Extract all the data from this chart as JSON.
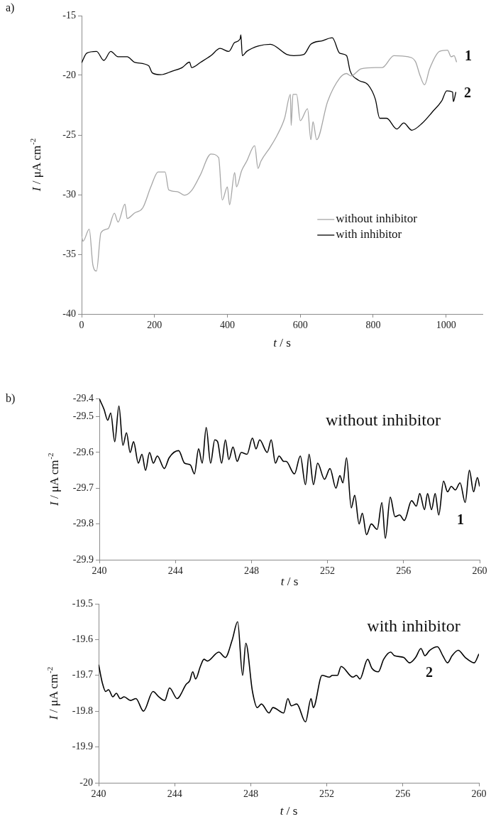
{
  "chart_data": [
    {
      "type": "line",
      "annotations": [
        "a)",
        "1",
        "2"
      ],
      "xlabel": "t / s",
      "ylabel": "I / μA cm$^{-2}$",
      "xlim": [
        0,
        1100
      ],
      "xticks": [
        0,
        200,
        400,
        600,
        800,
        1000
      ],
      "ylim": [
        -40,
        -15
      ],
      "yticks": [
        -40,
        -35,
        -30,
        -25,
        -20,
        -15
      ],
      "grid": false,
      "legend": "bottom right",
      "marker": "none",
      "series": [
        {
          "name": "without inhibitor",
          "color": "#a6a6a6",
          "x": [
            0,
            4,
            21,
            31,
            41,
            53,
            73,
            90,
            100,
            119,
            125,
            145,
            168,
            190,
            210,
            229,
            239,
            263,
            282,
            302,
            325,
            355,
            376,
            386,
            400,
            406,
            420,
            425,
            439,
            453,
            475,
            484,
            492,
            518,
            537,
            557,
            573,
            575,
            580,
            590,
            600,
            620,
            629,
            635,
            645,
            675,
            708,
            727,
            739,
            767,
            806,
            825,
            857,
            896,
            916,
            929,
            941,
            955,
            982,
            1004,
            1014,
            1022,
            1029
          ],
          "values": [
            -33.5,
            -33.9,
            -32.9,
            -35.9,
            -36.4,
            -33.2,
            -32.85,
            -31.55,
            -32.3,
            -30.8,
            -32.0,
            -31.55,
            -31.1,
            -29.35,
            -28.1,
            -28.1,
            -29.6,
            -29.75,
            -30.05,
            -29.65,
            -28.4,
            -26.6,
            -26.9,
            -30.45,
            -29.35,
            -30.85,
            -28.15,
            -29.35,
            -28.0,
            -27.2,
            -25.9,
            -27.8,
            -27.2,
            -26.0,
            -25.0,
            -23.6,
            -21.6,
            -24.2,
            -21.6,
            -21.6,
            -23.8,
            -22.8,
            -25.4,
            -23.9,
            -25.4,
            -22.2,
            -20.25,
            -19.85,
            -20.05,
            -19.45,
            -19.35,
            -19.35,
            -18.35,
            -18.45,
            -18.85,
            -20.05,
            -20.8,
            -19.45,
            -18.0,
            -17.9,
            -18.45,
            -18.35,
            -18.9
          ]
        },
        {
          "name": "with inhibitor",
          "color": "#000000",
          "x": [
            0,
            14,
            41,
            61,
            80,
            100,
            125,
            145,
            184,
            194,
            217,
            249,
            276,
            296,
            302,
            327,
            355,
            380,
            404,
            420,
            435,
            437,
            441,
            453,
            484,
            518,
            563,
            582,
            610,
            629,
            661,
            688,
            708,
            727,
            737,
            759,
            786,
            806,
            818,
            837,
            865,
            884,
            906,
            935,
            963,
            988,
            1002,
            1018,
            1020,
            1027
          ],
          "values": [
            -18.95,
            -18.15,
            -18.0,
            -18.75,
            -18.0,
            -18.45,
            -18.45,
            -18.9,
            -19.2,
            -19.8,
            -19.95,
            -19.65,
            -19.35,
            -18.9,
            -19.35,
            -18.9,
            -18.35,
            -17.75,
            -18.0,
            -17.25,
            -16.95,
            -16.6,
            -18.35,
            -18.0,
            -17.55,
            -17.4,
            -18.25,
            -18.35,
            -18.25,
            -17.4,
            -17.1,
            -16.85,
            -18.15,
            -18.35,
            -19.65,
            -20.4,
            -20.8,
            -22.0,
            -23.6,
            -23.6,
            -24.5,
            -24.0,
            -24.6,
            -24.0,
            -23.05,
            -22.15,
            -21.3,
            -21.4,
            -22.2,
            -21.4
          ]
        }
      ]
    },
    {
      "type": "line",
      "annotations": [
        "b)",
        "without inhibitor",
        "1"
      ],
      "xlabel": "t / s",
      "ylabel": "I / μA cm$^{-2}$",
      "xlim": [
        240,
        260
      ],
      "xticks": [
        240,
        244,
        248,
        252,
        256,
        260
      ],
      "ylim": [
        -29.9,
        -29.45
      ],
      "yticks": [
        -29.9,
        -29.8,
        -29.7,
        -29.6,
        -29.5,
        {
          "value": -29.45,
          "label": "-29.4"
        }
      ],
      "grid": false,
      "marker": "none",
      "series": [
        {
          "color": "#000000",
          "x": [
            240.0,
            240.25,
            240.44,
            240.6,
            240.81,
            241.03,
            241.24,
            241.43,
            241.62,
            241.8,
            242.05,
            242.24,
            242.43,
            242.64,
            242.84,
            243.05,
            243.42,
            243.67,
            244.17,
            244.48,
            244.79,
            245.0,
            245.22,
            245.41,
            245.62,
            245.85,
            246.07,
            246.22,
            246.43,
            246.63,
            246.81,
            247.03,
            247.25,
            247.46,
            247.77,
            248.05,
            248.24,
            248.43,
            248.83,
            249.04,
            249.26,
            249.45,
            249.7,
            249.82,
            250.26,
            250.57,
            250.84,
            251.03,
            251.26,
            251.48,
            251.84,
            252.13,
            252.44,
            252.65,
            252.81,
            253.0,
            253.25,
            253.43,
            253.66,
            253.83,
            254.05,
            254.3,
            254.61,
            254.86,
            255.04,
            255.3,
            255.55,
            255.79,
            256.04,
            256.42,
            256.67,
            256.85,
            257.1,
            257.26,
            257.47,
            257.66,
            257.85,
            258.1,
            258.31,
            258.51,
            258.72,
            258.97,
            259.24,
            259.46,
            259.68,
            259.88,
            260
          ],
          "values": [
            -29.45,
            -29.48,
            -29.51,
            -29.49,
            -29.57,
            -29.47,
            -29.58,
            -29.545,
            -29.6,
            -29.57,
            -29.63,
            -29.605,
            -29.65,
            -29.6,
            -29.63,
            -29.61,
            -29.645,
            -29.615,
            -29.595,
            -29.63,
            -29.635,
            -29.66,
            -29.59,
            -29.63,
            -29.53,
            -29.63,
            -29.565,
            -29.57,
            -29.63,
            -29.565,
            -29.62,
            -29.585,
            -29.625,
            -29.6,
            -29.605,
            -29.56,
            -29.59,
            -29.565,
            -29.6,
            -29.565,
            -29.63,
            -29.61,
            -29.625,
            -29.625,
            -29.66,
            -29.61,
            -29.69,
            -29.605,
            -29.69,
            -29.63,
            -29.675,
            -29.645,
            -29.7,
            -29.665,
            -29.685,
            -29.615,
            -29.755,
            -29.72,
            -29.8,
            -29.77,
            -29.83,
            -29.8,
            -29.815,
            -29.74,
            -29.84,
            -29.725,
            -29.78,
            -29.775,
            -29.79,
            -29.735,
            -29.75,
            -29.715,
            -29.76,
            -29.715,
            -29.76,
            -29.715,
            -29.775,
            -29.68,
            -29.71,
            -29.695,
            -29.705,
            -29.685,
            -29.74,
            -29.65,
            -29.71,
            -29.67,
            -29.695
          ]
        }
      ]
    },
    {
      "type": "line",
      "annotations": [
        "with inhibitor",
        "2"
      ],
      "xlabel": "t / s",
      "ylabel": "I / μA cm$^{-2}$",
      "xlim": [
        240,
        260
      ],
      "xticks": [
        240,
        244,
        248,
        252,
        256,
        260
      ],
      "ylim": [
        -20,
        -19.5
      ],
      "yticks": [
        -20,
        -19.9,
        -19.8,
        -19.7,
        -19.6,
        -19.5
      ],
      "grid": false,
      "marker": "none",
      "series": [
        {
          "color": "#000000",
          "x": [
            240.0,
            240.19,
            240.37,
            240.52,
            240.75,
            240.93,
            241.14,
            241.34,
            241.68,
            241.96,
            242.36,
            242.86,
            243.17,
            243.48,
            243.73,
            244.13,
            244.6,
            244.79,
            244.95,
            245.1,
            245.35,
            245.54,
            245.72,
            246.32,
            246.66,
            247.03,
            247.31,
            247.57,
            247.74,
            248.09,
            248.34,
            248.56,
            248.96,
            249.17,
            249.73,
            249.95,
            250.13,
            250.42,
            250.88,
            251.17,
            251.29,
            251.75,
            252.13,
            252.29,
            252.56,
            252.75,
            253.37,
            253.56,
            253.74,
            254.15,
            254.37,
            254.71,
            254.99,
            255.36,
            255.55,
            256.04,
            256.35,
            256.67,
            256.95,
            257.16,
            257.41,
            257.82,
            258.1,
            258.35,
            258.59,
            258.91,
            259.28,
            259.75,
            260
          ],
          "values": [
            -19.67,
            -19.72,
            -19.745,
            -19.74,
            -19.76,
            -19.75,
            -19.765,
            -19.76,
            -19.77,
            -19.765,
            -19.8,
            -19.745,
            -19.76,
            -19.77,
            -19.735,
            -19.765,
            -19.725,
            -19.715,
            -19.69,
            -19.71,
            -19.675,
            -19.655,
            -19.66,
            -19.635,
            -19.65,
            -19.6,
            -19.55,
            -19.7,
            -19.61,
            -19.745,
            -19.79,
            -19.78,
            -19.805,
            -19.79,
            -19.805,
            -19.765,
            -19.785,
            -19.78,
            -19.83,
            -19.765,
            -19.79,
            -19.7,
            -19.705,
            -19.7,
            -19.7,
            -19.675,
            -19.705,
            -19.7,
            -19.71,
            -19.655,
            -19.68,
            -19.69,
            -19.655,
            -19.635,
            -19.645,
            -19.65,
            -19.665,
            -19.65,
            -19.625,
            -19.645,
            -19.63,
            -19.62,
            -19.645,
            -19.665,
            -19.645,
            -19.63,
            -19.65,
            -19.665,
            -19.64
          ]
        }
      ]
    }
  ]
}
